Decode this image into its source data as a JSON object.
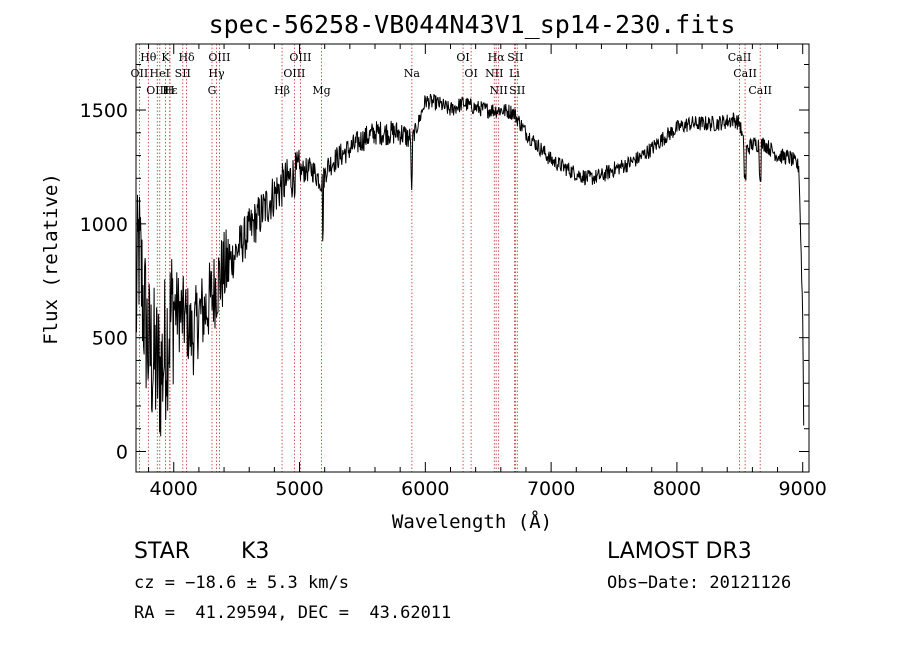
{
  "chart_data": {
    "type": "line",
    "title": "spec-56258-VB044N43V1_sp14-230.fits",
    "xlabel": "Wavelength (Å)",
    "ylabel": "Flux (relative)",
    "xlim": [
      3700,
      9050
    ],
    "ylim": [
      -90,
      1790
    ],
    "xticks": [
      4000,
      5000,
      6000,
      7000,
      8000,
      9000
    ],
    "yticks": [
      0,
      500,
      1000,
      1500
    ],
    "spectrum_knots": [
      [
        3700,
        600
      ],
      [
        3720,
        900
      ],
      [
        3760,
        650
      ],
      [
        3800,
        450
      ],
      [
        3850,
        380
      ],
      [
        3900,
        350
      ],
      [
        3950,
        520
      ],
      [
        4000,
        640
      ],
      [
        4060,
        600
      ],
      [
        4100,
        580
      ],
      [
        4150,
        500
      ],
      [
        4200,
        600
      ],
      [
        4250,
        620
      ],
      [
        4300,
        680
      ],
      [
        4360,
        760
      ],
      [
        4400,
        790
      ],
      [
        4500,
        880
      ],
      [
        4600,
        970
      ],
      [
        4700,
        1050
      ],
      [
        4800,
        1130
      ],
      [
        4900,
        1190
      ],
      [
        5000,
        1230
      ],
      [
        5100,
        1240
      ],
      [
        5180,
        1180
      ],
      [
        5220,
        1250
      ],
      [
        5300,
        1290
      ],
      [
        5400,
        1330
      ],
      [
        5500,
        1370
      ],
      [
        5600,
        1400
      ],
      [
        5700,
        1400
      ],
      [
        5800,
        1400
      ],
      [
        5890,
        1370
      ],
      [
        5930,
        1420
      ],
      [
        6000,
        1540
      ],
      [
        6100,
        1530
      ],
      [
        6200,
        1500
      ],
      [
        6300,
        1530
      ],
      [
        6400,
        1510
      ],
      [
        6500,
        1500
      ],
      [
        6600,
        1500
      ],
      [
        6700,
        1490
      ],
      [
        6800,
        1400
      ],
      [
        6900,
        1340
      ],
      [
        7000,
        1280
      ],
      [
        7100,
        1250
      ],
      [
        7200,
        1220
      ],
      [
        7300,
        1200
      ],
      [
        7400,
        1210
      ],
      [
        7500,
        1240
      ],
      [
        7600,
        1260
      ],
      [
        7700,
        1290
      ],
      [
        7800,
        1330
      ],
      [
        7900,
        1380
      ],
      [
        8000,
        1420
      ],
      [
        8100,
        1440
      ],
      [
        8200,
        1440
      ],
      [
        8300,
        1440
      ],
      [
        8400,
        1450
      ],
      [
        8450,
        1460
      ],
      [
        8500,
        1440
      ],
      [
        8540,
        1320
      ],
      [
        8600,
        1350
      ],
      [
        8700,
        1350
      ],
      [
        8800,
        1300
      ],
      [
        8900,
        1290
      ],
      [
        8970,
        1250
      ],
      [
        9000,
        600
      ],
      [
        9010,
        0
      ]
    ],
    "spectral_lines": [
      {
        "label": "Hθ",
        "x": 3798,
        "row": 0
      },
      {
        "label": "K",
        "x": 3934,
        "row": 0
      },
      {
        "label": "Hδ",
        "x": 4102,
        "row": 0
      },
      {
        "label": "OIII",
        "x": 4363,
        "row": 0
      },
      {
        "label": "OIII",
        "x": 5007,
        "row": 0
      },
      {
        "label": "OI",
        "x": 6300,
        "row": 0
      },
      {
        "label": "Hα",
        "x": 6563,
        "row": 0
      },
      {
        "label": "SII",
        "x": 6716,
        "row": 0
      },
      {
        "label": "CaII",
        "x": 8498,
        "row": 0
      },
      {
        "label": "OII",
        "x": 3727,
        "row": 1
      },
      {
        "label": "HeI",
        "x": 3889,
        "row": 1
      },
      {
        "label": "SII",
        "x": 4072,
        "row": 1
      },
      {
        "label": "Hγ",
        "x": 4340,
        "row": 1
      },
      {
        "label": "OIII",
        "x": 4959,
        "row": 1
      },
      {
        "label": "Na",
        "x": 5893,
        "row": 1
      },
      {
        "label": "OI",
        "x": 6364,
        "row": 1
      },
      {
        "label": "NII",
        "x": 6548,
        "row": 1
      },
      {
        "label": "Li",
        "x": 6708,
        "row": 1
      },
      {
        "label": "CaII",
        "x": 8542,
        "row": 1
      },
      {
        "label": "OIII",
        "x": 3869,
        "row": 2
      },
      {
        "label": "Hε",
        "x": 3970,
        "row": 2
      },
      {
        "label": "H",
        "x": 3968,
        "row": 2
      },
      {
        "label": "G",
        "x": 4304,
        "row": 2
      },
      {
        "label": "Hβ",
        "x": 4861,
        "row": 2
      },
      {
        "label": "Mg",
        "x": 5175,
        "row": 2
      },
      {
        "label": "NII",
        "x": 6583,
        "row": 2
      },
      {
        "label": "SII",
        "x": 6731,
        "row": 2
      },
      {
        "label": "CaII",
        "x": 8662,
        "row": 2
      }
    ]
  },
  "info": {
    "class": "STAR",
    "subclass": "K3",
    "survey": "LAMOST DR3",
    "cz": "cz = −18.6 ± 5.3 km/s",
    "obs_date": "Obs−Date: 20121126",
    "coords": "RA =  41.29594, DEC =  43.62011"
  },
  "colors": {
    "spectrum": "#000000",
    "line_markers": "#c03030",
    "axes": "#000000"
  }
}
